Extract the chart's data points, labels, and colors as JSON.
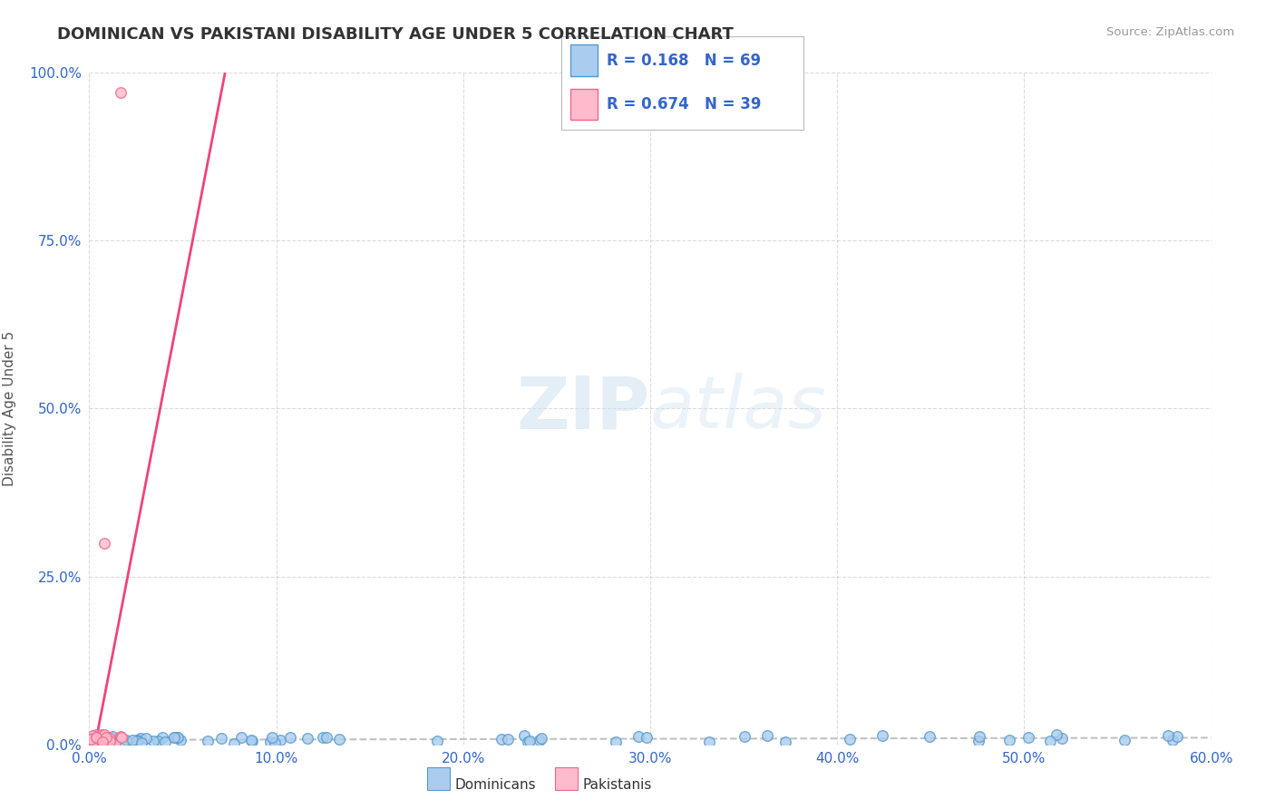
{
  "title": "DOMINICAN VS PAKISTANI DISABILITY AGE UNDER 5 CORRELATION CHART",
  "source_text": "Source: ZipAtlas.com",
  "ylabel_text": "Disability Age Under 5",
  "xlim": [
    0.0,
    0.6
  ],
  "ylim": [
    0.0,
    1.0
  ],
  "xtick_labels": [
    "0.0%",
    "10.0%",
    "20.0%",
    "30.0%",
    "40.0%",
    "50.0%",
    "60.0%"
  ],
  "xtick_vals": [
    0.0,
    0.1,
    0.2,
    0.3,
    0.4,
    0.5,
    0.6
  ],
  "ytick_labels": [
    "0.0%",
    "25.0%",
    "50.0%",
    "75.0%",
    "100.0%"
  ],
  "ytick_vals": [
    0.0,
    0.25,
    0.5,
    0.75,
    1.0
  ],
  "dominican_color": "#aaccee",
  "dominican_edge": "#5599cc",
  "pakistani_color": "#ffbbcc",
  "pakistani_edge": "#ee6688",
  "r_dominican": 0.168,
  "n_dominican": 69,
  "r_pakistani": 0.674,
  "n_pakistani": 39,
  "legend_label_1": "Dominicans",
  "legend_label_2": "Pakistanis",
  "watermark_zip": "ZIP",
  "watermark_atlas": "atlas",
  "background_color": "#ffffff",
  "grid_color": "#cccccc",
  "title_color": "#333333",
  "axis_color": "#3366cc",
  "reg_dom_color": "#bbbbbb",
  "reg_pak_color": "#ee4477"
}
